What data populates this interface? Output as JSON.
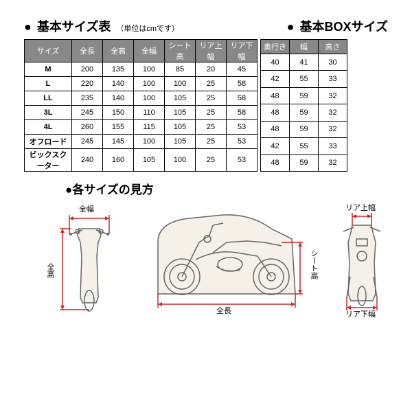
{
  "headings": {
    "sizeChart": "基本サイズ表",
    "unit": "（単位はcmです）",
    "boxSize": "基本BOXサイズ",
    "howToRead": "●各サイズの見方"
  },
  "table1": {
    "columns": [
      "サイズ",
      "全長",
      "全高",
      "全幅",
      "シート高",
      "リア上幅",
      "リア下幅"
    ],
    "rows": [
      [
        "M",
        "200",
        "135",
        "100",
        "85",
        "20",
        "45"
      ],
      [
        "L",
        "220",
        "140",
        "100",
        "100",
        "25",
        "58"
      ],
      [
        "LL",
        "235",
        "140",
        "100",
        "105",
        "25",
        "58"
      ],
      [
        "3L",
        "245",
        "150",
        "110",
        "105",
        "25",
        "58"
      ],
      [
        "4L",
        "260",
        "155",
        "115",
        "105",
        "25",
        "53"
      ],
      [
        "オフロード",
        "245",
        "145",
        "100",
        "105",
        "25",
        "53"
      ],
      [
        "ビックスクーター",
        "240",
        "160",
        "105",
        "100",
        "25",
        "53"
      ]
    ]
  },
  "table2": {
    "columns": [
      "奥行き",
      "幅",
      "高さ"
    ],
    "rows": [
      [
        "40",
        "41",
        "30"
      ],
      [
        "42",
        "55",
        "33"
      ],
      [
        "48",
        "59",
        "32"
      ],
      [
        "48",
        "59",
        "32"
      ],
      [
        "48",
        "59",
        "32"
      ],
      [
        "42",
        "55",
        "33"
      ],
      [
        "48",
        "59",
        "32"
      ]
    ]
  },
  "labels": {
    "zencho": "全長",
    "zenko": "全高",
    "zenpuku": "全幅",
    "seatHeight": "シート高",
    "rearUpper": "リア上幅",
    "rearLower": "リア下幅"
  },
  "colors": {
    "arrow": "#c92828",
    "moto": "#666",
    "fill": "#f5f0e8"
  }
}
